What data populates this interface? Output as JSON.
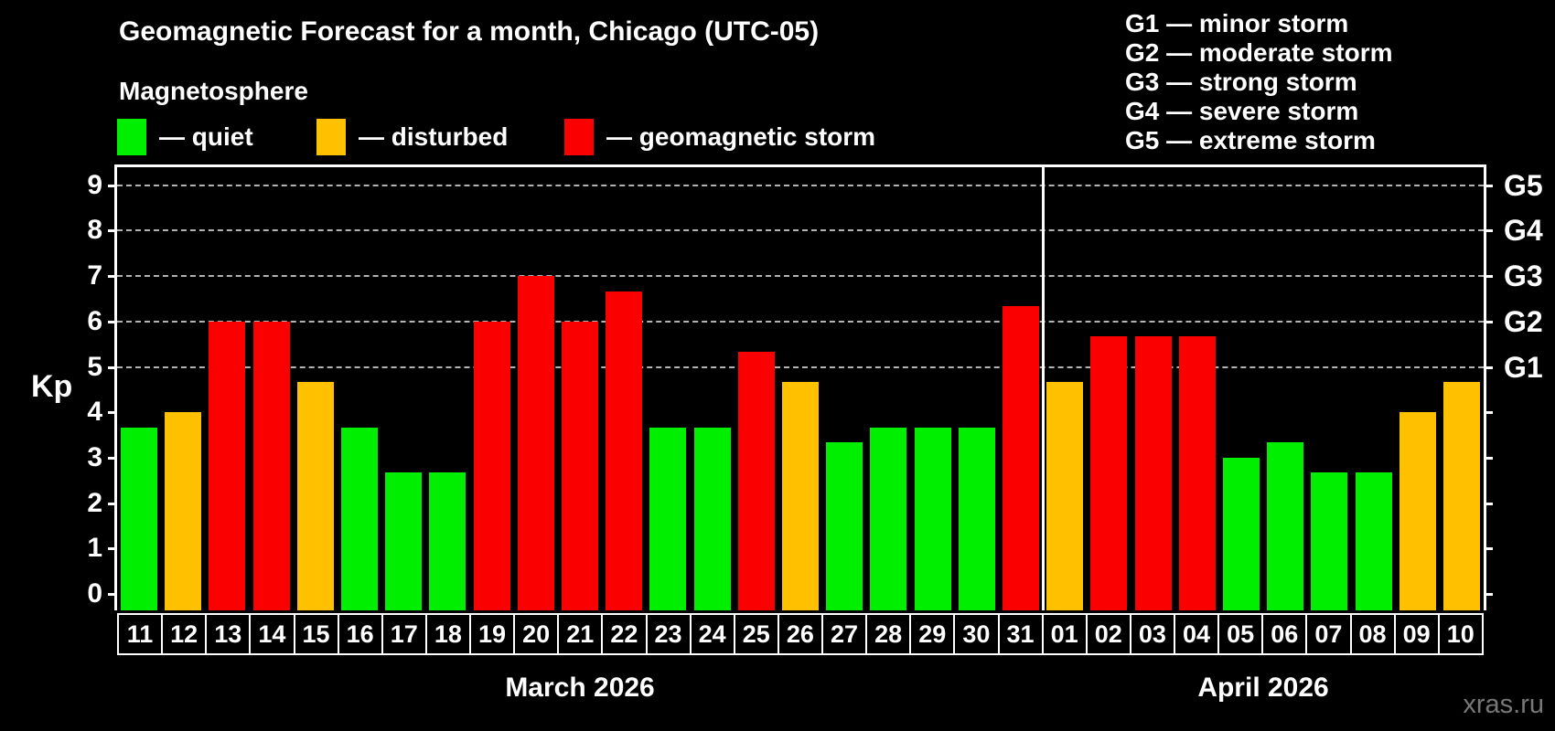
{
  "header": {
    "title": "Geomagnetic Forecast for a month, Chicago (UTC-05)",
    "subtitle": "Magnetosphere"
  },
  "legend": {
    "items": [
      {
        "name": "quiet",
        "label": "— quiet",
        "color": "#00ee00"
      },
      {
        "name": "disturbed",
        "label": "— disturbed",
        "color": "#ffc000"
      },
      {
        "name": "storm",
        "label": "— geomagnetic storm",
        "color": "#fa0000"
      }
    ]
  },
  "g_legend": {
    "items": [
      "G1 — minor storm",
      "G2 — moderate storm",
      "G3 — strong storm",
      "G4 — severe storm",
      "G5 — extreme storm"
    ]
  },
  "axes": {
    "y_label": "Kp",
    "left_ticks": [
      0,
      1,
      2,
      3,
      4,
      5,
      6,
      7,
      8,
      9
    ],
    "right_labels": {
      "5": "G1",
      "6": "G2",
      "7": "G3",
      "8": "G4",
      "9": "G5"
    }
  },
  "watermark": "xras.ru",
  "chart_data": {
    "type": "bar",
    "title": "Geomagnetic Forecast for a month, Chicago (UTC-05)",
    "xlabel": "",
    "ylabel": "Kp",
    "ylim": [
      0,
      9.5
    ],
    "grid": "dashed horizontal at Kp 5-9",
    "gridlines_kp": [
      5,
      6,
      7,
      8,
      9
    ],
    "legend_position": "top-left",
    "x_groups": [
      {
        "label": "March 2026",
        "count": 21
      },
      {
        "label": "April 2026",
        "count": 10
      }
    ],
    "categories": [
      "11",
      "12",
      "13",
      "14",
      "15",
      "16",
      "17",
      "18",
      "19",
      "20",
      "21",
      "22",
      "23",
      "24",
      "25",
      "26",
      "27",
      "28",
      "29",
      "30",
      "31",
      "01",
      "02",
      "03",
      "04",
      "05",
      "06",
      "07",
      "08",
      "09",
      "10"
    ],
    "series": [
      {
        "name": "Kp forecast",
        "values": [
          3.67,
          4.0,
          6.0,
          6.0,
          4.67,
          3.67,
          2.67,
          2.67,
          6.0,
          7.0,
          6.0,
          6.67,
          3.67,
          3.67,
          5.33,
          4.67,
          3.33,
          3.67,
          3.67,
          3.67,
          6.33,
          4.67,
          5.67,
          5.67,
          5.67,
          3.0,
          3.33,
          2.67,
          2.67,
          4.0,
          4.67
        ]
      }
    ],
    "states": [
      "quiet",
      "disturbed",
      "storm",
      "storm",
      "disturbed",
      "quiet",
      "quiet",
      "quiet",
      "storm",
      "storm",
      "storm",
      "storm",
      "quiet",
      "quiet",
      "storm",
      "disturbed",
      "quiet",
      "quiet",
      "quiet",
      "quiet",
      "storm",
      "disturbed",
      "storm",
      "storm",
      "storm",
      "quiet",
      "quiet",
      "quiet",
      "quiet",
      "disturbed",
      "disturbed"
    ],
    "state_colors": {
      "quiet": "#00ee00",
      "disturbed": "#ffc000",
      "storm": "#fa0000"
    }
  }
}
